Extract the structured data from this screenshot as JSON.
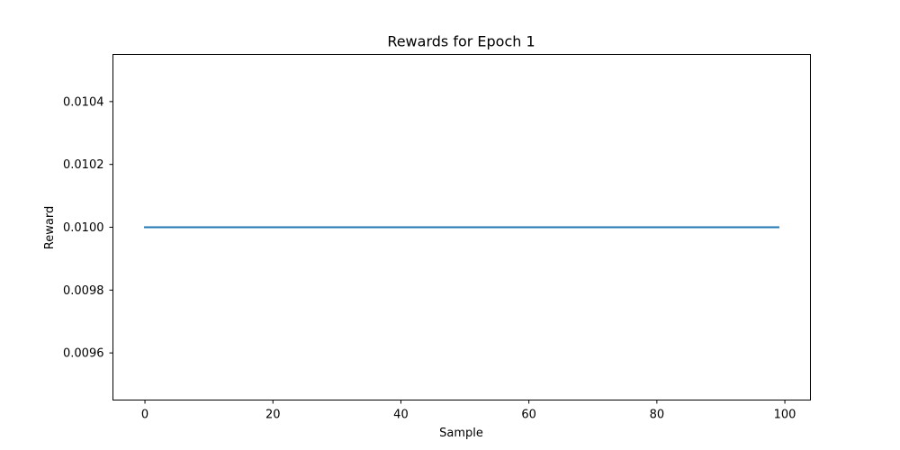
{
  "chart_data": {
    "type": "line",
    "title": "Rewards for Epoch 1",
    "xlabel": "Sample",
    "ylabel": "Reward",
    "xlim": [
      -5,
      104
    ],
    "ylim": [
      0.00945,
      0.01055
    ],
    "x_ticks": [
      0,
      20,
      40,
      60,
      80,
      100
    ],
    "x_tick_labels": [
      "0",
      "20",
      "40",
      "60",
      "80",
      "100"
    ],
    "y_ticks": [
      0.0096,
      0.0098,
      0.01,
      0.0102,
      0.0104
    ],
    "y_tick_labels": [
      "0.0096",
      "0.0098",
      "0.0100",
      "0.0102",
      "0.0104"
    ],
    "grid": false,
    "series": [
      {
        "color": "#1f77b4",
        "x": [
          0,
          99
        ],
        "y": [
          0.01,
          0.01
        ]
      }
    ]
  }
}
